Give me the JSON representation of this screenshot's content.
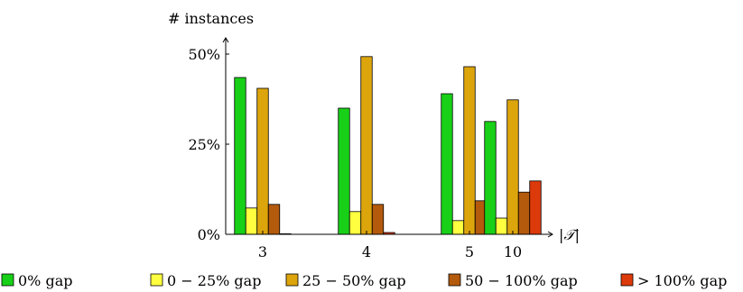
{
  "chart_data": {
    "type": "bar",
    "ylabel": "# instances",
    "xlabel": "|𝒯|",
    "categories": [
      "3",
      "4",
      "5",
      "10"
    ],
    "yticks": [
      "0%",
      "25%",
      "50%"
    ],
    "ylim": [
      0,
      55
    ],
    "grid": false,
    "legend_position": "bottom",
    "series": [
      {
        "name": "0% gap",
        "color": "#18d018",
        "values": [
          43.5,
          35.0,
          39.0,
          31.3
        ]
      },
      {
        "name": "0 − 25% gap",
        "color": "#ffff40",
        "values": [
          7.3,
          6.3,
          3.8,
          4.5
        ]
      },
      {
        "name": "25 − 50% gap",
        "color": "#dda50c",
        "values": [
          40.5,
          49.3,
          46.5,
          37.3
        ]
      },
      {
        "name": "50 − 100% gap",
        "color": "#b35a0d",
        "values": [
          8.3,
          8.3,
          9.3,
          11.7
        ]
      },
      {
        "name": "> 100% gap",
        "color": "#dd3a0b",
        "values": [
          0.15,
          0.5,
          0.8,
          14.8
        ]
      }
    ]
  }
}
